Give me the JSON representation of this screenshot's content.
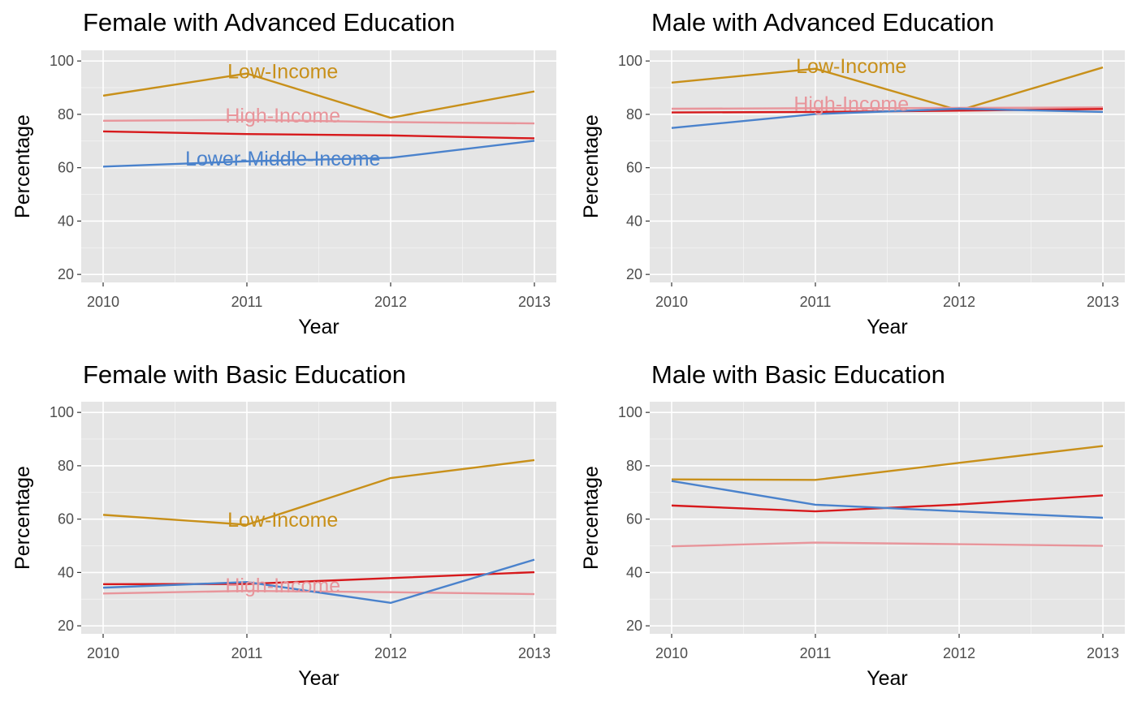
{
  "colors": {
    "low_income": "#C8901A",
    "high_income": "#E8959B",
    "upper_middle_income": "#D7191C",
    "lower_middle_income": "#4A82CC",
    "panel_background": "#E5E5E5",
    "grid": "#FFFFFF",
    "axis_text": "#4D4D4D"
  },
  "chart_data": [
    {
      "type": "line",
      "title": "Female with Advanced Education",
      "xlabel": "Year",
      "ylabel": "Percentage",
      "x": [
        2010,
        2011,
        2012,
        2013
      ],
      "x_ticks": [
        "2010",
        "2011",
        "2012",
        "2013"
      ],
      "y_ticks": [
        "20",
        "40",
        "60",
        "80",
        "100"
      ],
      "ylim": [
        17,
        104
      ],
      "grid": true,
      "series": [
        {
          "color_key": "low_income",
          "values": [
            87,
            95.3,
            78.7,
            88.6
          ]
        },
        {
          "color_key": "high_income",
          "values": [
            77.6,
            77.9,
            77.1,
            76.6
          ]
        },
        {
          "color_key": "upper_middle_income",
          "values": [
            73.6,
            72.6,
            72.1,
            71.0
          ]
        },
        {
          "color_key": "lower_middle_income",
          "values": [
            60.4,
            62.4,
            63.7,
            70.1
          ]
        }
      ],
      "annotations": [
        {
          "text": "Low-Income",
          "color_key": "low_income",
          "x": 2011.25,
          "y": 96.2
        },
        {
          "text": "High-Income",
          "color_key": "high_income",
          "x": 2011.25,
          "y": 79.6
        },
        {
          "text": "Lower-Middle-Income",
          "color_key": "lower_middle_income",
          "x": 2011.25,
          "y": 63.6
        }
      ]
    },
    {
      "type": "line",
      "title": "Male with Advanced Education",
      "xlabel": "Year",
      "ylabel": "Percentage",
      "x": [
        2010,
        2011,
        2012,
        2013
      ],
      "x_ticks": [
        "2010",
        "2011",
        "2012",
        "2013"
      ],
      "y_ticks": [
        "20",
        "40",
        "60",
        "80",
        "100"
      ],
      "ylim": [
        17,
        104
      ],
      "grid": true,
      "series": [
        {
          "color_key": "low_income",
          "values": [
            91.9,
            97.1,
            81.5,
            97.6
          ]
        },
        {
          "color_key": "high_income",
          "values": [
            82.1,
            82.3,
            82.4,
            82.6
          ]
        },
        {
          "color_key": "upper_middle_income",
          "values": [
            80.7,
            80.9,
            81.4,
            82.0
          ]
        },
        {
          "color_key": "lower_middle_income",
          "values": [
            74.9,
            80.1,
            82.1,
            80.9
          ]
        }
      ],
      "annotations": [
        {
          "text": "Low-Income",
          "color_key": "low_income",
          "x": 2011.25,
          "y": 98.2
        },
        {
          "text": "High-Income",
          "color_key": "high_income",
          "x": 2011.25,
          "y": 84.0
        }
      ]
    },
    {
      "type": "line",
      "title": "Female with Basic Education",
      "xlabel": "Year",
      "ylabel": "Percentage",
      "x": [
        2010,
        2011,
        2012,
        2013
      ],
      "x_ticks": [
        "2010",
        "2011",
        "2012",
        "2013"
      ],
      "y_ticks": [
        "20",
        "40",
        "60",
        "80",
        "100"
      ],
      "ylim": [
        17,
        104
      ],
      "grid": true,
      "series": [
        {
          "color_key": "low_income",
          "values": [
            61.6,
            57.9,
            75.4,
            82.1
          ]
        },
        {
          "color_key": "high_income",
          "values": [
            32.1,
            33.1,
            32.6,
            31.9
          ]
        },
        {
          "color_key": "upper_middle_income",
          "values": [
            35.6,
            35.7,
            37.9,
            40.1
          ]
        },
        {
          "color_key": "lower_middle_income",
          "values": [
            34.3,
            36.4,
            28.6,
            44.8
          ]
        }
      ],
      "annotations": [
        {
          "text": "Low-Income",
          "color_key": "low_income",
          "x": 2011.25,
          "y": 59.9
        },
        {
          "text": "High-Income",
          "color_key": "high_income",
          "x": 2011.25,
          "y": 35.3
        }
      ]
    },
    {
      "type": "line",
      "title": "Male with Basic Education",
      "xlabel": "Year",
      "ylabel": "Percentage",
      "x": [
        2010,
        2011,
        2012,
        2013
      ],
      "x_ticks": [
        "2010",
        "2011",
        "2012",
        "2013"
      ],
      "y_ticks": [
        "20",
        "40",
        "60",
        "80",
        "100"
      ],
      "ylim": [
        17,
        104
      ],
      "grid": true,
      "series": [
        {
          "color_key": "low_income",
          "values": [
            74.9,
            74.7,
            81.1,
            87.4
          ]
        },
        {
          "color_key": "high_income",
          "values": [
            49.8,
            51.2,
            50.6,
            50.0
          ]
        },
        {
          "color_key": "upper_middle_income",
          "values": [
            65.1,
            62.9,
            65.5,
            68.9
          ]
        },
        {
          "color_key": "lower_middle_income",
          "values": [
            74.3,
            65.4,
            62.9,
            60.5
          ]
        }
      ],
      "annotations": []
    }
  ]
}
